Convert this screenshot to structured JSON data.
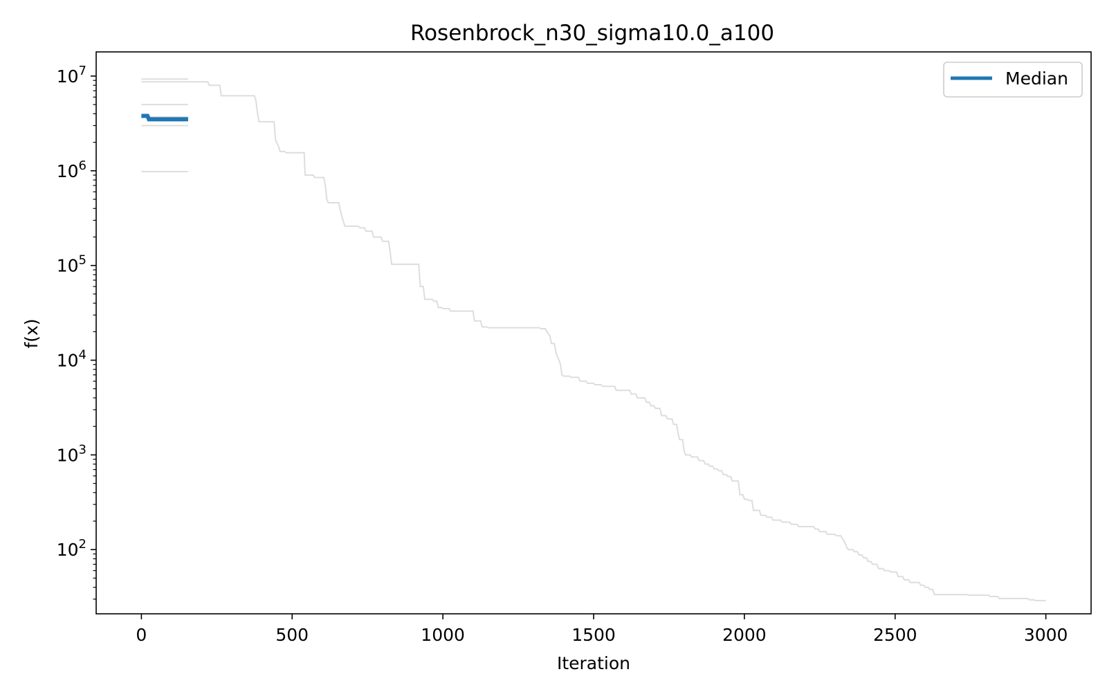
{
  "chart_data": {
    "type": "line",
    "title": "Rosenbrock_n30_sigma10.0_a100",
    "xlabel": "Iteration",
    "ylabel": "f(x)",
    "xlim": [
      -150,
      3150
    ],
    "ylim": [
      21,
      18000000
    ],
    "yscale": "log",
    "grid": false,
    "legend": {
      "position": "top-right",
      "entries": [
        "Median"
      ]
    },
    "x_ticks": [
      {
        "value": 0,
        "label": "0"
      },
      {
        "value": 500,
        "label": "500"
      },
      {
        "value": 1000,
        "label": "1000"
      },
      {
        "value": 1500,
        "label": "1500"
      },
      {
        "value": 2000,
        "label": "2000"
      },
      {
        "value": 2500,
        "label": "2500"
      },
      {
        "value": 3000,
        "label": "3000"
      }
    ],
    "y_ticks": [
      {
        "value": 100,
        "base": "10",
        "exp": "2"
      },
      {
        "value": 1000,
        "base": "10",
        "exp": "3"
      },
      {
        "value": 10000,
        "base": "10",
        "exp": "4"
      },
      {
        "value": 100000,
        "base": "10",
        "exp": "5"
      },
      {
        "value": 1000000,
        "base": "10",
        "exp": "6"
      },
      {
        "value": 10000000,
        "base": "10",
        "exp": "7"
      }
    ],
    "colors": {
      "median": "#1f77b4",
      "runs": "#dddddd"
    },
    "series": [
      {
        "name": "Median",
        "color": "#1f77b4",
        "points": [
          [
            0,
            3800000
          ],
          [
            20,
            3800000
          ],
          [
            25,
            3500000
          ],
          [
            155,
            3500000
          ]
        ]
      },
      {
        "color": "#dddddd",
        "points": [
          [
            0,
            9300000
          ],
          [
            155,
            9300000
          ]
        ]
      },
      {
        "color": "#dddddd",
        "points": [
          [
            0,
            5000000
          ],
          [
            155,
            5000000
          ]
        ]
      },
      {
        "color": "#dddddd",
        "points": [
          [
            0,
            3700000
          ],
          [
            155,
            3700000
          ]
        ]
      },
      {
        "color": "#dddddd",
        "points": [
          [
            0,
            3000000
          ],
          [
            155,
            3000000
          ]
        ]
      },
      {
        "color": "#dddddd",
        "points": [
          [
            0,
            980000
          ],
          [
            155,
            980000
          ]
        ]
      },
      {
        "color": "#dddddd",
        "points": [
          [
            0,
            8700000
          ],
          [
            220,
            8700000
          ],
          [
            225,
            8000000
          ],
          [
            260,
            8000000
          ],
          [
            265,
            6200000
          ],
          [
            375,
            6200000
          ],
          [
            380,
            5500000
          ],
          [
            385,
            4100000
          ],
          [
            390,
            3300000
          ],
          [
            440,
            3300000
          ],
          [
            445,
            2100000
          ],
          [
            455,
            1800000
          ],
          [
            460,
            1600000
          ],
          [
            475,
            1600000
          ],
          [
            480,
            1550000
          ],
          [
            540,
            1550000
          ],
          [
            543,
            900000
          ],
          [
            570,
            900000
          ],
          [
            575,
            850000
          ],
          [
            605,
            850000
          ],
          [
            610,
            700000
          ],
          [
            615,
            500000
          ],
          [
            620,
            460000
          ],
          [
            655,
            460000
          ],
          [
            660,
            380000
          ],
          [
            665,
            330000
          ],
          [
            670,
            290000
          ],
          [
            675,
            260000
          ],
          [
            720,
            260000
          ],
          [
            725,
            250000
          ],
          [
            740,
            250000
          ],
          [
            745,
            230000
          ],
          [
            765,
            230000
          ],
          [
            770,
            200000
          ],
          [
            795,
            200000
          ],
          [
            800,
            180000
          ],
          [
            820,
            180000
          ],
          [
            825,
            140000
          ],
          [
            830,
            103000
          ],
          [
            920,
            103000
          ],
          [
            925,
            60000
          ],
          [
            935,
            60000
          ],
          [
            940,
            44000
          ],
          [
            965,
            44000
          ],
          [
            970,
            42000
          ],
          [
            980,
            42000
          ],
          [
            985,
            36000
          ],
          [
            995,
            36000
          ],
          [
            1000,
            35000
          ],
          [
            1020,
            35000
          ],
          [
            1025,
            33000
          ],
          [
            1100,
            33000
          ],
          [
            1105,
            26000
          ],
          [
            1125,
            26000
          ],
          [
            1130,
            22500
          ],
          [
            1145,
            22500
          ],
          [
            1150,
            22000
          ],
          [
            1320,
            22000
          ],
          [
            1325,
            21500
          ],
          [
            1340,
            21500
          ],
          [
            1345,
            20000
          ],
          [
            1355,
            18000
          ],
          [
            1360,
            15000
          ],
          [
            1370,
            15000
          ],
          [
            1375,
            12000
          ],
          [
            1385,
            10000
          ],
          [
            1390,
            9000
          ],
          [
            1395,
            7000
          ],
          [
            1400,
            6800
          ],
          [
            1420,
            6800
          ],
          [
            1425,
            6600
          ],
          [
            1450,
            6600
          ],
          [
            1455,
            6000
          ],
          [
            1475,
            6000
          ],
          [
            1480,
            5700
          ],
          [
            1500,
            5700
          ],
          [
            1505,
            5500
          ],
          [
            1525,
            5500
          ],
          [
            1530,
            5300
          ],
          [
            1570,
            5300
          ],
          [
            1575,
            4800
          ],
          [
            1620,
            4800
          ],
          [
            1625,
            4400
          ],
          [
            1640,
            4400
          ],
          [
            1645,
            4000
          ],
          [
            1670,
            4000
          ],
          [
            1675,
            3600
          ],
          [
            1685,
            3600
          ],
          [
            1690,
            3300
          ],
          [
            1700,
            3300
          ],
          [
            1705,
            3100
          ],
          [
            1720,
            3100
          ],
          [
            1725,
            2600
          ],
          [
            1740,
            2600
          ],
          [
            1745,
            2400
          ],
          [
            1760,
            2400
          ],
          [
            1765,
            2100
          ],
          [
            1775,
            2100
          ],
          [
            1780,
            1700
          ],
          [
            1785,
            1450
          ],
          [
            1795,
            1450
          ],
          [
            1800,
            1100
          ],
          [
            1805,
            1000
          ],
          [
            1820,
            1000
          ],
          [
            1825,
            950
          ],
          [
            1845,
            950
          ],
          [
            1850,
            870
          ],
          [
            1865,
            870
          ],
          [
            1870,
            800
          ],
          [
            1880,
            800
          ],
          [
            1885,
            760
          ],
          [
            1895,
            760
          ],
          [
            1900,
            710
          ],
          [
            1910,
            710
          ],
          [
            1915,
            680
          ],
          [
            1925,
            680
          ],
          [
            1930,
            620
          ],
          [
            1940,
            620
          ],
          [
            1945,
            590
          ],
          [
            1955,
            590
          ],
          [
            1960,
            530
          ],
          [
            1980,
            530
          ],
          [
            1985,
            380
          ],
          [
            1995,
            380
          ],
          [
            2000,
            340
          ],
          [
            2010,
            340
          ],
          [
            2015,
            330
          ],
          [
            2025,
            330
          ],
          [
            2030,
            260
          ],
          [
            2050,
            260
          ],
          [
            2055,
            230
          ],
          [
            2070,
            230
          ],
          [
            2075,
            220
          ],
          [
            2090,
            220
          ],
          [
            2095,
            205
          ],
          [
            2120,
            205
          ],
          [
            2125,
            195
          ],
          [
            2150,
            195
          ],
          [
            2155,
            185
          ],
          [
            2175,
            185
          ],
          [
            2180,
            175
          ],
          [
            2230,
            175
          ],
          [
            2235,
            165
          ],
          [
            2245,
            165
          ],
          [
            2250,
            155
          ],
          [
            2270,
            155
          ],
          [
            2275,
            145
          ],
          [
            2300,
            145
          ],
          [
            2305,
            140
          ],
          [
            2320,
            140
          ],
          [
            2325,
            130
          ],
          [
            2330,
            125
          ],
          [
            2335,
            115
          ],
          [
            2340,
            105
          ],
          [
            2345,
            100
          ],
          [
            2360,
            100
          ],
          [
            2365,
            95
          ],
          [
            2375,
            95
          ],
          [
            2380,
            88
          ],
          [
            2390,
            88
          ],
          [
            2395,
            82
          ],
          [
            2405,
            82
          ],
          [
            2410,
            75
          ],
          [
            2420,
            75
          ],
          [
            2425,
            70
          ],
          [
            2440,
            70
          ],
          [
            2445,
            63
          ],
          [
            2460,
            63
          ],
          [
            2465,
            60
          ],
          [
            2480,
            60
          ],
          [
            2485,
            58
          ],
          [
            2505,
            58
          ],
          [
            2510,
            52
          ],
          [
            2525,
            52
          ],
          [
            2530,
            48
          ],
          [
            2545,
            48
          ],
          [
            2550,
            45
          ],
          [
            2580,
            45
          ],
          [
            2585,
            42
          ],
          [
            2595,
            42
          ],
          [
            2600,
            40
          ],
          [
            2610,
            40
          ],
          [
            2615,
            38
          ],
          [
            2625,
            38
          ],
          [
            2630,
            33.5
          ],
          [
            2740,
            33.5
          ],
          [
            2745,
            33
          ],
          [
            2810,
            33
          ],
          [
            2815,
            32
          ],
          [
            2840,
            32
          ],
          [
            2845,
            30.5
          ],
          [
            2940,
            30.5
          ],
          [
            2945,
            29.5
          ],
          [
            2960,
            29.5
          ],
          [
            2965,
            29
          ],
          [
            3000,
            29
          ]
        ]
      }
    ]
  }
}
